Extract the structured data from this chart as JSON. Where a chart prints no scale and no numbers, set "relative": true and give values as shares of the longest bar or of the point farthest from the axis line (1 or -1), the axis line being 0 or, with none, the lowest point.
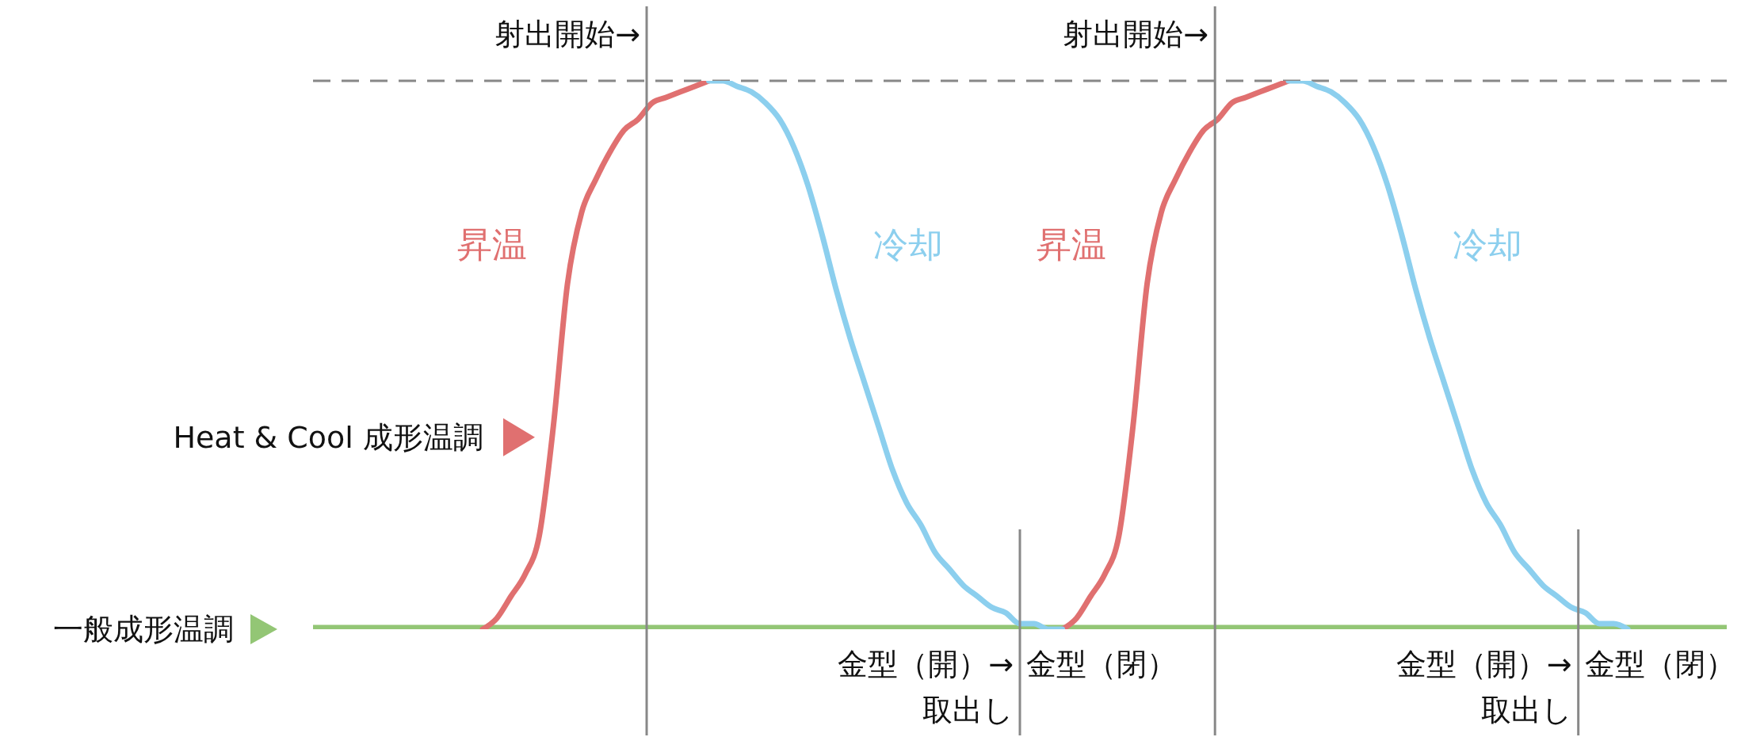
{
  "chart_data": {
    "type": "line",
    "relative": true,
    "legend": "left",
    "grid": false,
    "marker": "none",
    "line_style": "solid",
    "categories": [
      null,
      null,
      null,
      null,
      null,
      null,
      null,
      null,
      null,
      null,
      null,
      null,
      null,
      null,
      null,
      null,
      null,
      null,
      null,
      null,
      null,
      null,
      null,
      null,
      null,
      null,
      null,
      null,
      null,
      null,
      null,
      null,
      null,
      null,
      null,
      null,
      null,
      null,
      null,
      null,
      null,
      null,
      null,
      null,
      null,
      null,
      null,
      null,
      null,
      null,
      null,
      null,
      null,
      null,
      null,
      null,
      null,
      null,
      null,
      null,
      null,
      null,
      null,
      null,
      null,
      null,
      null,
      null,
      null,
      null,
      null,
      null,
      null,
      null,
      null,
      null,
      null,
      null,
      null,
      null,
      null,
      null,
      null,
      null,
      null,
      null,
      null,
      null,
      null,
      null,
      null,
      null,
      null,
      null,
      null,
      null,
      null,
      null,
      null,
      null,
      null
    ],
    "series": [
      {
        "name": "一般成形温調",
        "color": "#93c675",
        "values": [
          0,
          0,
          0,
          0,
          0,
          0,
          0,
          0,
          0,
          0,
          0,
          0,
          0,
          0,
          0,
          0,
          0,
          0,
          0,
          0,
          0,
          0,
          0,
          0,
          0,
          0,
          0,
          0,
          0,
          0,
          0,
          0,
          0,
          0,
          0,
          0,
          0,
          0,
          0,
          0,
          0,
          0,
          0,
          0,
          0,
          0,
          0,
          0,
          0,
          0,
          0,
          0,
          0,
          0,
          0,
          0,
          0,
          0,
          0,
          0,
          0,
          0,
          0,
          0,
          0,
          0,
          0,
          0,
          0,
          0,
          0,
          0,
          0,
          0,
          0,
          0,
          0,
          0,
          0,
          0,
          0,
          0,
          0,
          0,
          0,
          0,
          0,
          0,
          0,
          0,
          0,
          0,
          0,
          0,
          0,
          0,
          0,
          0,
          0,
          0,
          0
        ]
      },
      {
        "name": "昇温",
        "color": "#e07070",
        "values": [
          null,
          null,
          null,
          null,
          null,
          null,
          null,
          null,
          null,
          null,
          null,
          null,
          0,
          0.02,
          0.06,
          0.1,
          0.17,
          0.37,
          0.63,
          0.76,
          0.82,
          0.87,
          0.91,
          0.93,
          0.96,
          0.97,
          0.98,
          0.99,
          1,
          null,
          null,
          null,
          null,
          null,
          null,
          null,
          null,
          null,
          null,
          null,
          null,
          null,
          null,
          null,
          null,
          null,
          null,
          null,
          null,
          null,
          null,
          null,
          null,
          0,
          0.02,
          0.06,
          0.1,
          0.17,
          0.37,
          0.63,
          0.76,
          0.82,
          0.87,
          0.91,
          0.93,
          0.96,
          0.97,
          0.98,
          0.99,
          1,
          null,
          null,
          null,
          null,
          null,
          null,
          null,
          null,
          null,
          null,
          null,
          null,
          null,
          null,
          null,
          null,
          null,
          null,
          null,
          null,
          null,
          null,
          null,
          null,
          null,
          null,
          null,
          null,
          null,
          null,
          null
        ]
      },
      {
        "name": "冷却",
        "color": "#8ccfee",
        "values": [
          null,
          null,
          null,
          null,
          null,
          null,
          null,
          null,
          null,
          null,
          null,
          null,
          null,
          null,
          null,
          null,
          null,
          null,
          null,
          null,
          null,
          null,
          null,
          null,
          null,
          null,
          null,
          null,
          1,
          1,
          0.99,
          0.98,
          0.96,
          0.93,
          0.88,
          0.81,
          0.72,
          0.62,
          0.53,
          0.45,
          0.37,
          0.29,
          0.23,
          0.19,
          0.14,
          0.11,
          0.08,
          0.06,
          0.04,
          0.03,
          0.01,
          0.01,
          0,
          0,
          null,
          null,
          null,
          null,
          null,
          null,
          null,
          null,
          null,
          null,
          null,
          null,
          null,
          null,
          null,
          1,
          1,
          0.99,
          0.98,
          0.96,
          0.93,
          0.88,
          0.81,
          0.72,
          0.62,
          0.53,
          0.45,
          0.37,
          0.29,
          0.23,
          0.19,
          0.14,
          0.11,
          0.08,
          0.06,
          0.04,
          0.03,
          0.01,
          0.01,
          0,
          null,
          null,
          null,
          null,
          null,
          null,
          null
        ]
      }
    ],
    "ref_lines": [
      {
        "axis": "y",
        "value": 1,
        "color": "#888888",
        "line_style": "dashed"
      }
    ],
    "annotations": [
      "射出開始→",
      "金型（開）→\n取出し",
      "金型（閉）",
      "射出開始→",
      "金型（開）→\n取出し",
      "金型（閉）",
      "Heat & Cool 成形温調"
    ]
  }
}
